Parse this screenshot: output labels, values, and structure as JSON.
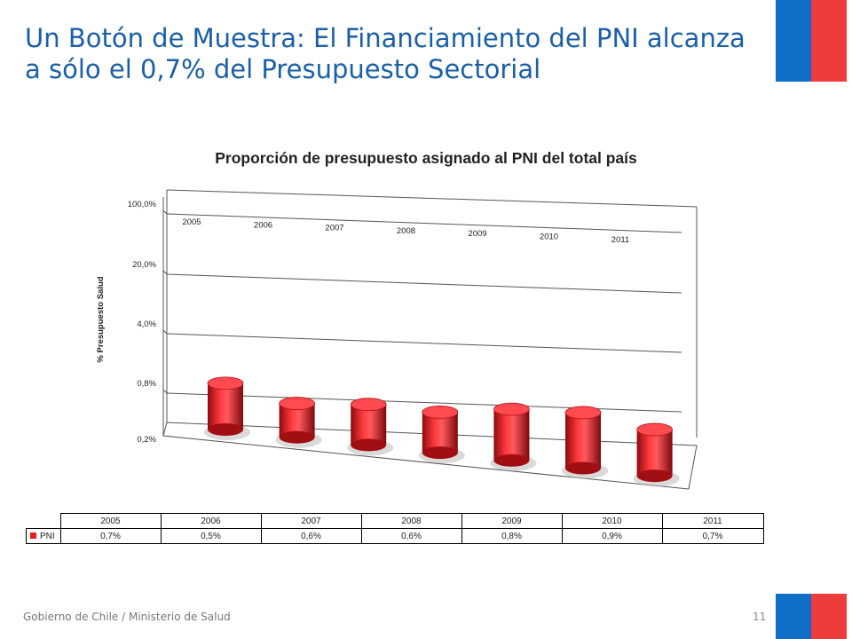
{
  "slide": {
    "title": "Un Botón de Muestra: El Financiamiento del PNI alcanza a sólo el 0,7% del Presupuesto Sectorial",
    "footer": "Gobierno de Chile / Ministerio de Salud",
    "page_number": "11"
  },
  "colors": {
    "bar": "#e81e25",
    "title": "#1a5fa8",
    "flag_blue": "#0f6fc6",
    "flag_red": "#ee3c3c"
  },
  "chart_data": {
    "type": "bar",
    "title": "Proporción de presupuesto asignado al PNI del total país",
    "xlabel": "",
    "ylabel": "% Presupuesto Salud",
    "y_scale": "log",
    "y_ticks": [
      "100,0%",
      "20,0%",
      "4,0%",
      "0,8%",
      "0,2%"
    ],
    "y_tick_values": [
      100,
      20,
      4,
      0.8,
      0.2
    ],
    "categories": [
      "2005",
      "2006",
      "2007",
      "2008",
      "2009",
      "2010",
      "2011"
    ],
    "series": [
      {
        "name": "PNI",
        "values": [
          0.7,
          0.5,
          0.6,
          0.6,
          0.8,
          0.9,
          0.7
        ],
        "labels": [
          "0,7%",
          "0,5%",
          "0,6%",
          "0,6%",
          "0,8%",
          "0,9%",
          "0,7%"
        ]
      }
    ],
    "data_table": true
  }
}
